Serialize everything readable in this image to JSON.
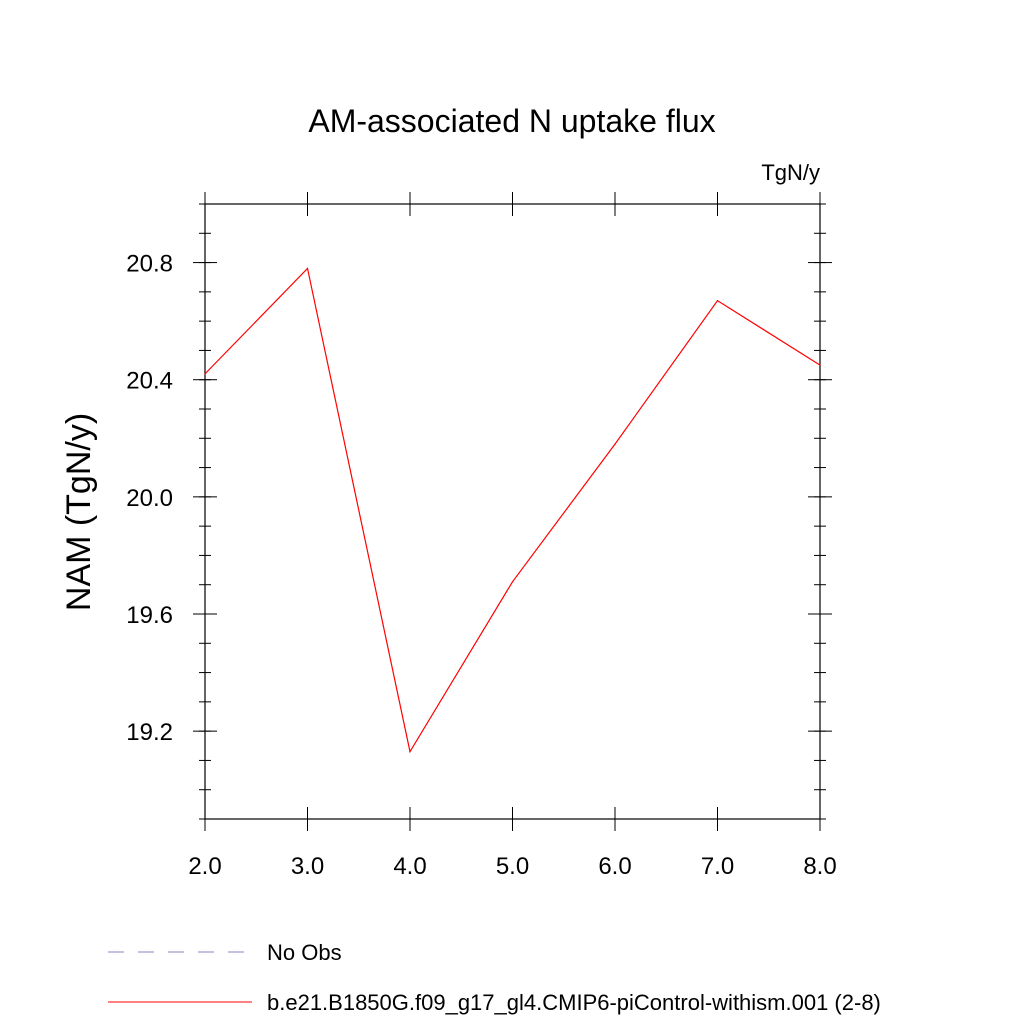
{
  "chart_data": {
    "type": "line",
    "title": "AM-associated N uptake flux",
    "units_label": "TgN/y",
    "xlabel": "",
    "ylabel": "NAM  (TgN/y)",
    "xlim": [
      2.0,
      8.0
    ],
    "ylim": [
      18.9,
      21.0
    ],
    "x_ticks": [
      2.0,
      3.0,
      4.0,
      5.0,
      6.0,
      7.0,
      8.0
    ],
    "x_tick_labels": [
      "2.0",
      "3.0",
      "4.0",
      "5.0",
      "6.0",
      "7.0",
      "8.0"
    ],
    "y_ticks": [
      19.2,
      19.6,
      20.0,
      20.4,
      20.8
    ],
    "y_tick_labels": [
      "19.2",
      "19.6",
      "20.0",
      "20.4",
      "20.8"
    ],
    "y_minor_step": 0.1,
    "grid": false,
    "legend_position": "bottom-left",
    "series": [
      {
        "name": "b.e21.B1850G.f09_g17_gl4.CMIP6-piControl-withism.001 (2-8)",
        "color": "#ff0000",
        "style": "solid",
        "x": [
          2.0,
          3.0,
          4.0,
          5.0,
          6.0,
          7.0,
          8.0
        ],
        "y": [
          20.42,
          20.78,
          19.13,
          19.71,
          20.18,
          20.67,
          20.45
        ]
      }
    ],
    "legend": [
      {
        "label": "No Obs",
        "color": "#8a80c0",
        "style": "dashed"
      },
      {
        "label": "b.e21.B1850G.f09_g17_gl4.CMIP6-piControl-withism.001 (2-8)",
        "color": "#ff0000",
        "style": "solid"
      }
    ]
  }
}
